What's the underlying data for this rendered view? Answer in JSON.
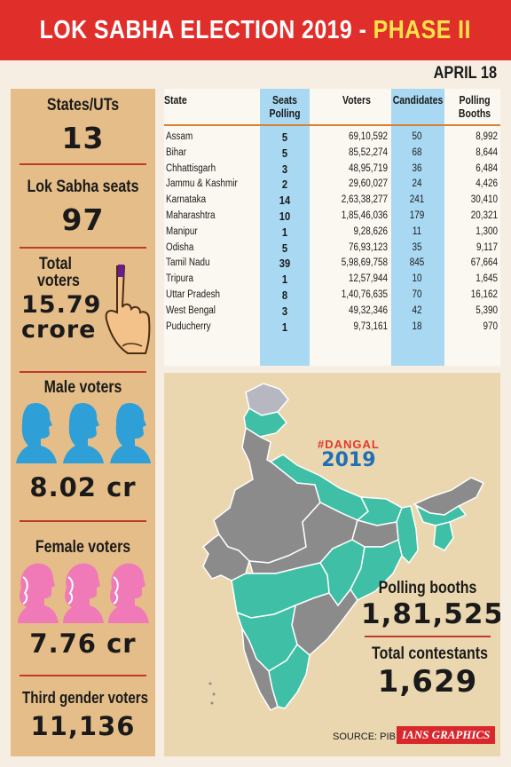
{
  "header": {
    "title_main": "LOK SABHA ELECTION 2019 - ",
    "title_phase": "PHASE II",
    "date": "APRIL 18",
    "colors": {
      "banner": "#e02e2b",
      "phase": "#ffe14a"
    }
  },
  "left_panel": {
    "states": {
      "label": "States/UTs",
      "value": "13"
    },
    "seats": {
      "label": "Lok Sabha seats",
      "value": "97"
    },
    "total": {
      "label_line1": "Total",
      "label_line2": "voters",
      "value": "15.79",
      "unit": "crore",
      "icon": "inked-finger-icon"
    },
    "male": {
      "label": "Male voters",
      "value": "8.02 cr",
      "icon": "male-head-icon",
      "icon_color": "#2f9fd8"
    },
    "female": {
      "label": "Female voters",
      "value": "7.76 cr",
      "icon": "female-head-icon",
      "icon_color": "#f07ab8"
    },
    "third": {
      "label": "Third gender voters",
      "value": "11,136"
    }
  },
  "table": {
    "headers": {
      "state": "State",
      "seats_1": "Seats",
      "seats_2": "Polling",
      "voters": "Voters",
      "candidates": "Candidates",
      "booths_1": "Polling",
      "booths_2": "Booths"
    },
    "rows": [
      {
        "state": "Assam",
        "seats": "5",
        "voters": "69,10,592",
        "candidates": "50",
        "booths": "8,992"
      },
      {
        "state": "Bihar",
        "seats": "5",
        "voters": "85,52,274",
        "candidates": "68",
        "booths": "8,644"
      },
      {
        "state": "Chhattisgarh",
        "seats": "3",
        "voters": "48,95,719",
        "candidates": "36",
        "booths": "6,484"
      },
      {
        "state": "Jammu & Kashmir",
        "seats": "2",
        "voters": "29,60,027",
        "candidates": "24",
        "booths": "4,426"
      },
      {
        "state": "Karnataka",
        "seats": "14",
        "voters": "2,63,38,277",
        "candidates": "241",
        "booths": "30,410"
      },
      {
        "state": "Maharashtra",
        "seats": "10",
        "voters": "1,85,46,036",
        "candidates": "179",
        "booths": "20,321"
      },
      {
        "state": "Manipur",
        "seats": "1",
        "voters": "9,28,626",
        "candidates": "11",
        "booths": "1,300"
      },
      {
        "state": "Odisha",
        "seats": "5",
        "voters": "76,93,123",
        "candidates": "35",
        "booths": "9,117"
      },
      {
        "state": "Tamil Nadu",
        "seats": "39",
        "voters": "5,98,69,758",
        "candidates": "845",
        "booths": "67,664"
      },
      {
        "state": "Tripura",
        "seats": "1",
        "voters": "12,57,944",
        "candidates": "10",
        "booths": "1,645"
      },
      {
        "state": "Uttar Pradesh",
        "seats": "8",
        "voters": "1,40,76,635",
        "candidates": "70",
        "booths": "16,162"
      },
      {
        "state": "West Bengal",
        "seats": "3",
        "voters": "49,32,346",
        "candidates": "42",
        "booths": "5,390"
      },
      {
        "state": "Puducherry",
        "seats": "1",
        "voters": "9,73,161",
        "candidates": "18",
        "booths": "970"
      }
    ]
  },
  "map": {
    "tag": "#DANGAL",
    "year": "2019",
    "booths_label": "Polling booths",
    "booths_value": "1,81,525",
    "contestants_label": "Total contestants",
    "contestants_value": "1,629",
    "source": "SOURCE: PIB",
    "credit": "IANS GRAPHICS",
    "colors": {
      "polling": "#3fbfa6",
      "other": "#8b8b8b",
      "outside": "#b7b7c2"
    }
  }
}
